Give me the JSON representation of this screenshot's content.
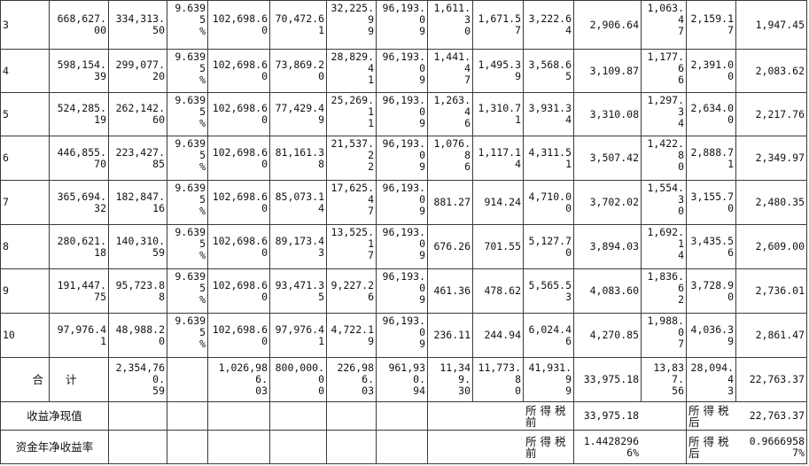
{
  "table": {
    "rows": [
      [
        "3",
        "668,627.00",
        "334,313.50",
        "9.6395\n%",
        "102,698.60",
        "70,472.61",
        "32,225.9\n9",
        "96,193.0\n9",
        "1,611.3\n0",
        "1,671.57",
        "3,222.64",
        "2,906.64",
        "1,063.4\n7",
        "2,159.17",
        "1,947.45"
      ],
      [
        "4",
        "598,154.39",
        "299,077.20",
        "9.6395\n%",
        "102,698.60",
        "73,869.20",
        "28,829.4\n1",
        "96,193.0\n9",
        "1,441.4\n7",
        "1,495.39",
        "3,568.65",
        "3,109.87",
        "1,177.6\n6",
        "2,391.00",
        "2,083.62"
      ],
      [
        "5",
        "524,285.19",
        "262,142.60",
        "9.6395\n%",
        "102,698.60",
        "77,429.49",
        "25,269.1\n1",
        "96,193.0\n9",
        "1,263.4\n6",
        "1,310.71",
        "3,931.34",
        "3,310.08",
        "1,297.3\n4",
        "2,634.00",
        "2,217.76"
      ],
      [
        "6",
        "446,855.70",
        "223,427.85",
        "9.6395\n%",
        "102,698.60",
        "81,161.38",
        "21,537.2\n2",
        "96,193.0\n9",
        "1,076.8\n6",
        "1,117.14",
        "4,311.51",
        "3,507.42",
        "1,422.8\n0",
        "2,888.71",
        "2,349.97"
      ],
      [
        "7",
        "365,694.32",
        "182,847.16",
        "9.6395\n%",
        "102,698.60",
        "85,073.14",
        "17,625.4\n7",
        "96,193.0\n9",
        "881.27",
        "914.24",
        "4,710.00",
        "3,702.02",
        "1,554.3\n0",
        "3,155.70",
        "2,480.35"
      ],
      [
        "8",
        "280,621.18",
        "140,310.59",
        "9.6395\n%",
        "102,698.60",
        "89,173.43",
        "13,525.1\n7",
        "96,193.0\n9",
        "676.26",
        "701.55",
        "5,127.70",
        "3,894.03",
        "1,692.1\n4",
        "3,435.56",
        "2,609.00"
      ],
      [
        "9",
        "191,447.75",
        "95,723.88",
        "9.6395\n%",
        "102,698.60",
        "93,471.35",
        "9,227.26",
        "96,193.0\n9",
        "461.36",
        "478.62",
        "5,565.53",
        "4,083.60",
        "1,836.6\n2",
        "3,728.90",
        "2,736.01"
      ],
      [
        "10",
        "97,976.41",
        "48,988.20",
        "9.6395\n%",
        "102,698.60",
        "97,976.41",
        "4,722.19",
        "96,193.0\n9",
        "236.11",
        "244.94",
        "6,024.46",
        "4,270.85",
        "1,988.0\n7",
        "4,036.39",
        "2,861.47"
      ],
      [
        "合　　计",
        "2,354,760.\n59",
        "",
        "1,026,986.\n03",
        "800,000.0\n0",
        "226,986.\n03",
        "961,930.\n94",
        "11,349.\n30",
        "11,773.8\n0",
        "41,931.9\n9",
        "33,975.18",
        "13,837.\n56",
        "28,094.4\n3",
        "22,763.37"
      ]
    ],
    "npv_label": "收益净现值",
    "pretax_label": "所 得 税\n前",
    "aftertax_label": "所 得 税\n后",
    "npv_pretax": "33,975.18",
    "npv_aftertax": "22,763.37",
    "rate_label": "资金年净收益率",
    "rate_pretax": "1.44282966%",
    "rate_aftertax": "0.96669587%"
  }
}
